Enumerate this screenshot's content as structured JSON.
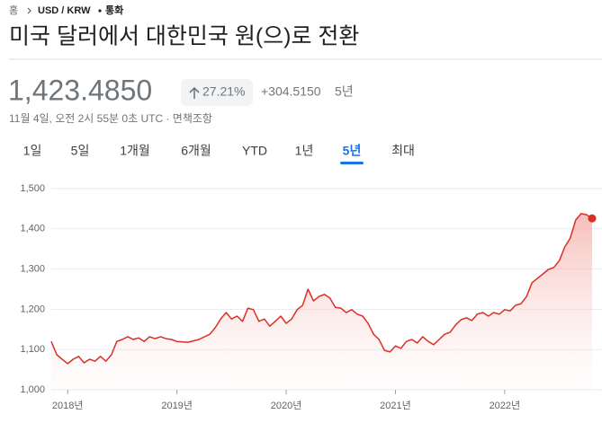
{
  "breadcrumb": [
    "홈",
    "USD / KRW",
    "통화"
  ],
  "title": "미국 달러에서 대한민국 원(으)로 전환",
  "price": "1,423.4850",
  "change_percent": "27.21%",
  "change_amount": "+304.5150",
  "change_period": "5년",
  "timestamp": "11월 4일, 오전 2시 55분 0초 UTC",
  "disclaimer": "면책조항",
  "tabs": [
    "1일",
    "5일",
    "1개월",
    "6개월",
    "YTD",
    "1년",
    "5년",
    "최대"
  ],
  "selected_tab": 6,
  "chart_data": {
    "type": "line",
    "x": [
      2017.85,
      2017.9,
      2017.95,
      2018.0,
      2018.05,
      2018.1,
      2018.15,
      2018.2,
      2018.25,
      2018.3,
      2018.35,
      2018.4,
      2018.45,
      2018.5,
      2018.55,
      2018.6,
      2018.65,
      2018.7,
      2018.75,
      2018.8,
      2018.85,
      2018.9,
      2018.95,
      2019.0,
      2019.1,
      2019.2,
      2019.3,
      2019.35,
      2019.4,
      2019.45,
      2019.5,
      2019.55,
      2019.6,
      2019.65,
      2019.7,
      2019.75,
      2019.8,
      2019.85,
      2019.9,
      2019.95,
      2020.0,
      2020.05,
      2020.1,
      2020.15,
      2020.2,
      2020.25,
      2020.3,
      2020.35,
      2020.4,
      2020.45,
      2020.5,
      2020.55,
      2020.6,
      2020.65,
      2020.7,
      2020.75,
      2020.8,
      2020.85,
      2020.9,
      2020.95,
      2021.0,
      2021.05,
      2021.1,
      2021.15,
      2021.2,
      2021.25,
      2021.3,
      2021.35,
      2021.4,
      2021.45,
      2021.5,
      2021.55,
      2021.6,
      2021.65,
      2021.7,
      2021.75,
      2021.8,
      2021.85,
      2021.9,
      2021.95,
      2022.0,
      2022.05,
      2022.1,
      2022.15,
      2022.2,
      2022.25,
      2022.3,
      2022.35,
      2022.4,
      2022.45,
      2022.5,
      2022.55,
      2022.6,
      2022.65,
      2022.7,
      2022.75,
      2022.8
    ],
    "series": [
      {
        "color": "#d93025",
        "values": [
          1120,
          1087,
          1076,
          1065,
          1076,
          1083,
          1067,
          1076,
          1071,
          1083,
          1071,
          1087,
          1120,
          1125,
          1132,
          1125,
          1129,
          1120,
          1132,
          1127,
          1132,
          1127,
          1125,
          1120,
          1118,
          1125,
          1138,
          1154,
          1176,
          1192,
          1176,
          1183,
          1170,
          1203,
          1199,
          1170,
          1176,
          1158,
          1170,
          1183,
          1165,
          1176,
          1199,
          1210,
          1250,
          1221,
          1232,
          1237,
          1228,
          1205,
          1203,
          1192,
          1199,
          1188,
          1183,
          1165,
          1138,
          1125,
          1098,
          1094,
          1109,
          1103,
          1120,
          1125,
          1116,
          1132,
          1120,
          1112,
          1125,
          1138,
          1143,
          1161,
          1174,
          1179,
          1172,
          1188,
          1192,
          1183,
          1192,
          1188,
          1199,
          1196,
          1210,
          1214,
          1232,
          1266,
          1277,
          1288,
          1299,
          1304,
          1321,
          1355,
          1377,
          1422,
          1438,
          1435,
          1426
        ]
      }
    ],
    "xlim": [
      2017.85,
      2022.8
    ],
    "xticks": [
      {
        "value": 2018,
        "label": "2018년"
      },
      {
        "value": 2019,
        "label": "2019년"
      },
      {
        "value": 2020,
        "label": "2020년"
      },
      {
        "value": 2021,
        "label": "2021년"
      },
      {
        "value": 2022,
        "label": "2022년"
      }
    ],
    "ylim": [
      1000,
      1500
    ],
    "yticks": [
      {
        "value": 1000,
        "label": "1,000"
      },
      {
        "value": 1100,
        "label": "1,100"
      },
      {
        "value": 1200,
        "label": "1,200"
      },
      {
        "value": 1300,
        "label": "1,300"
      },
      {
        "value": 1400,
        "label": "1,400"
      },
      {
        "value": 1500,
        "label": "1,500"
      }
    ],
    "grid": true
  }
}
